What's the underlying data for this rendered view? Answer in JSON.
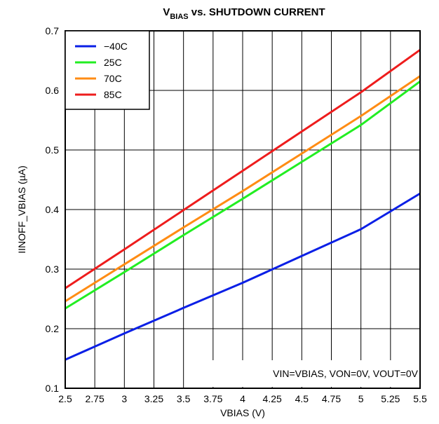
{
  "chart_data": {
    "type": "line",
    "title_main": "V",
    "title_sub": "BIAS",
    "title_rest": " vs. SHUTDOWN CURRENT",
    "xlabel": "VBIAS (V)",
    "ylabel": "IINOFF_VBIAS (µA)",
    "xlim": [
      2.5,
      5.5
    ],
    "ylim": [
      0.1,
      0.7
    ],
    "x_ticks": [
      2.5,
      2.75,
      3,
      3.25,
      3.5,
      3.75,
      4,
      4.25,
      4.5,
      4.75,
      5,
      5.25,
      5.5
    ],
    "x_tick_labels": [
      "2.5",
      "2.75",
      "3",
      "3.25",
      "3.5",
      "3.75",
      "4",
      "4.25",
      "4.5",
      "4.75",
      "5",
      "5.25",
      "5.5"
    ],
    "y_ticks": [
      0.1,
      0.2,
      0.3,
      0.4,
      0.5,
      0.6,
      0.7
    ],
    "y_tick_labels": [
      "0.1",
      "0.2",
      "0.3",
      "0.4",
      "0.5",
      "0.6",
      "0.7"
    ],
    "grid": true,
    "legend_position": "top-left",
    "annotation": "VIN=VBIAS, VON=0V, VOUT=0V",
    "series": [
      {
        "name": "−40C",
        "color": "#0a1fe6",
        "x": [
          2.5,
          3.0,
          3.5,
          4.0,
          4.5,
          5.0,
          5.5
        ],
        "y": [
          0.148,
          0.192,
          0.235,
          0.277,
          0.322,
          0.367,
          0.427
        ]
      },
      {
        "name": "25C",
        "color": "#22ee22",
        "x": [
          2.5,
          3.0,
          3.5,
          4.0,
          4.5,
          5.0,
          5.5
        ],
        "y": [
          0.234,
          0.295,
          0.357,
          0.418,
          0.48,
          0.542,
          0.615
        ]
      },
      {
        "name": "70C",
        "color": "#ff8c14",
        "x": [
          2.5,
          3.0,
          3.5,
          4.0,
          4.5,
          5.0,
          5.5
        ],
        "y": [
          0.246,
          0.308,
          0.37,
          0.431,
          0.494,
          0.557,
          0.624
        ]
      },
      {
        "name": "85C",
        "color": "#ee1c1c",
        "x": [
          2.5,
          3.0,
          3.5,
          4.0,
          4.5,
          5.0,
          5.5
        ],
        "y": [
          0.268,
          0.333,
          0.399,
          0.465,
          0.531,
          0.597,
          0.668
        ]
      }
    ]
  }
}
